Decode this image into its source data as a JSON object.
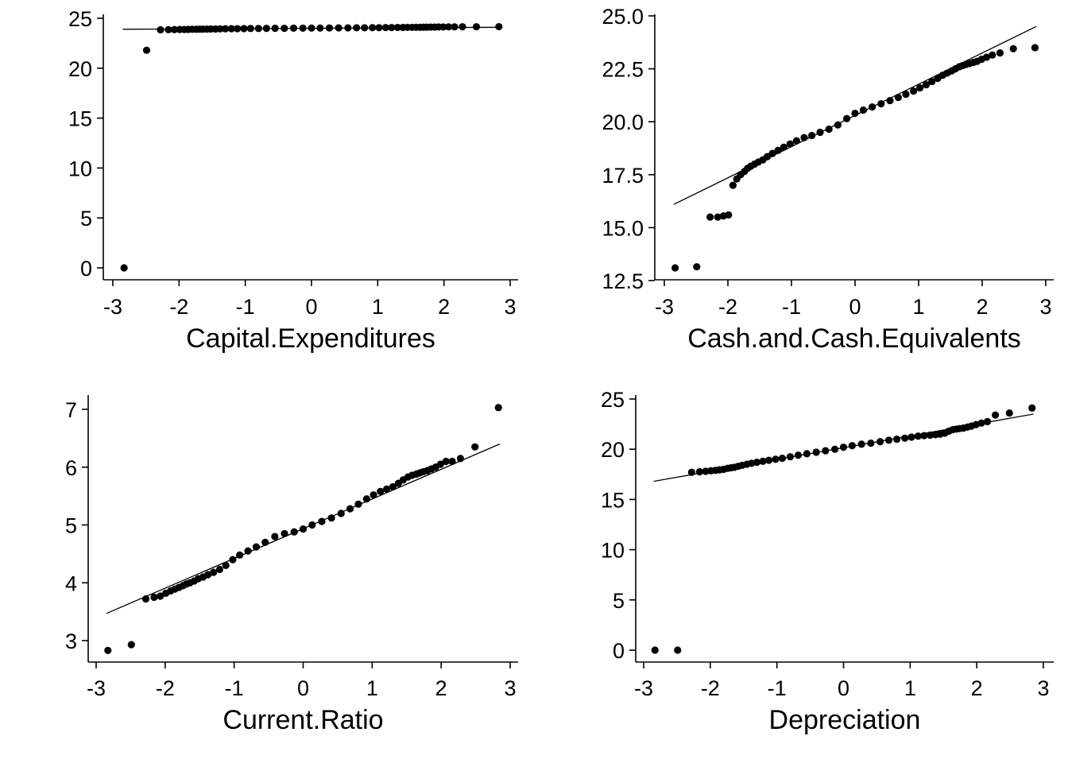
{
  "chart_data": [
    {
      "type": "scatter",
      "subtype": "qq-plot",
      "xlabel": "Capital.Expenditures",
      "ylabel": "",
      "xlim": [
        -3.0,
        3.0
      ],
      "ylim": [
        -1.0,
        25.5
      ],
      "xticks": [
        -3,
        -2,
        -1,
        0,
        1,
        2,
        3
      ],
      "xtick_labels": [
        "-3",
        "-2",
        "-1",
        "0",
        "1",
        "2",
        "3"
      ],
      "yticks": [
        0,
        5,
        10,
        15,
        20,
        25
      ],
      "ytick_labels": [
        "0",
        "5",
        "10",
        "15",
        "20",
        "25"
      ],
      "reference_line": {
        "x": [
          -2.85,
          2.85
        ],
        "y": [
          23.9,
          24.1
        ]
      },
      "points": {
        "x": [
          -2.83,
          -2.49,
          -2.28,
          -2.16,
          -2.07,
          -1.99,
          -1.92,
          -1.86,
          -1.8,
          -1.74,
          -1.69,
          -1.64,
          -1.58,
          -1.52,
          -1.45,
          -1.38,
          -1.3,
          -1.21,
          -1.12,
          -1.02,
          -0.92,
          -0.8,
          -0.68,
          -0.55,
          -0.41,
          -0.27,
          -0.13,
          0.0,
          0.13,
          0.27,
          0.41,
          0.55,
          0.68,
          0.8,
          0.92,
          1.02,
          1.12,
          1.21,
          1.3,
          1.38,
          1.45,
          1.52,
          1.58,
          1.64,
          1.69,
          1.74,
          1.8,
          1.86,
          1.92,
          1.99,
          2.07,
          2.16,
          2.28,
          2.49,
          2.83
        ],
        "y": [
          0.0,
          21.8,
          23.85,
          23.86,
          23.87,
          23.88,
          23.88,
          23.89,
          23.9,
          23.9,
          23.91,
          23.91,
          23.92,
          23.93,
          23.93,
          23.94,
          23.95,
          23.96,
          23.96,
          23.97,
          23.98,
          23.98,
          23.99,
          24.0,
          24.0,
          24.01,
          24.01,
          24.02,
          24.02,
          24.03,
          24.04,
          24.04,
          24.05,
          24.05,
          24.06,
          24.06,
          24.07,
          24.07,
          24.08,
          24.08,
          24.09,
          24.09,
          24.1,
          24.1,
          24.11,
          24.11,
          24.12,
          24.12,
          24.13,
          24.13,
          24.14,
          24.14,
          24.15,
          24.15,
          24.16
        ]
      }
    },
    {
      "type": "scatter",
      "subtype": "qq-plot",
      "xlabel": "Cash.and.Cash.Equivalents",
      "ylabel": "",
      "xlim": [
        -3.0,
        3.0
      ],
      "ylim": [
        12.5,
        25.0
      ],
      "xticks": [
        -3,
        -2,
        -1,
        0,
        1,
        2,
        3
      ],
      "xtick_labels": [
        "-3",
        "-2",
        "-1",
        "0",
        "1",
        "2",
        "3"
      ],
      "yticks": [
        12.5,
        15.0,
        17.5,
        20.0,
        22.5,
        25.0
      ],
      "ytick_labels": [
        "12.5",
        "15.0",
        "17.5",
        "20.0",
        "22.5",
        "25.0"
      ],
      "reference_line": {
        "x": [
          -2.85,
          2.85
        ],
        "y": [
          16.1,
          24.5
        ]
      },
      "points": {
        "x": [
          -2.83,
          -2.49,
          -2.28,
          -2.16,
          -2.07,
          -1.99,
          -1.92,
          -1.86,
          -1.8,
          -1.74,
          -1.69,
          -1.64,
          -1.58,
          -1.52,
          -1.45,
          -1.38,
          -1.3,
          -1.21,
          -1.12,
          -1.02,
          -0.92,
          -0.8,
          -0.68,
          -0.55,
          -0.41,
          -0.27,
          -0.13,
          0.0,
          0.13,
          0.27,
          0.41,
          0.55,
          0.68,
          0.8,
          0.92,
          1.02,
          1.12,
          1.21,
          1.3,
          1.38,
          1.45,
          1.52,
          1.58,
          1.64,
          1.69,
          1.74,
          1.8,
          1.86,
          1.92,
          1.99,
          2.07,
          2.16,
          2.28,
          2.49,
          2.83
        ],
        "y": [
          13.1,
          13.15,
          15.5,
          15.5,
          15.55,
          15.6,
          17.0,
          17.3,
          17.5,
          17.65,
          17.8,
          17.9,
          18.0,
          18.1,
          18.2,
          18.35,
          18.5,
          18.65,
          18.8,
          18.95,
          19.1,
          19.25,
          19.35,
          19.5,
          19.65,
          19.85,
          20.15,
          20.4,
          20.55,
          20.7,
          20.85,
          21.0,
          21.15,
          21.3,
          21.45,
          21.6,
          21.75,
          21.9,
          22.05,
          22.2,
          22.3,
          22.4,
          22.5,
          22.6,
          22.65,
          22.7,
          22.75,
          22.8,
          22.85,
          22.95,
          23.05,
          23.15,
          23.25,
          23.45,
          23.5
        ]
      }
    },
    {
      "type": "scatter",
      "subtype": "qq-plot",
      "xlabel": "Current.Ratio",
      "ylabel": "",
      "xlim": [
        -3.0,
        3.0
      ],
      "ylim": [
        2.6,
        7.25
      ],
      "xticks": [
        -3,
        -2,
        -1,
        0,
        1,
        2,
        3
      ],
      "xtick_labels": [
        "-3",
        "-2",
        "-1",
        "0",
        "1",
        "2",
        "3"
      ],
      "yticks": [
        3,
        4,
        5,
        6,
        7
      ],
      "ytick_labels": [
        "3",
        "4",
        "5",
        "6",
        "7"
      ],
      "reference_line": {
        "x": [
          -2.85,
          2.85
        ],
        "y": [
          3.47,
          6.4
        ]
      },
      "points": {
        "x": [
          -2.83,
          -2.49,
          -2.28,
          -2.16,
          -2.07,
          -1.99,
          -1.92,
          -1.86,
          -1.8,
          -1.74,
          -1.69,
          -1.64,
          -1.58,
          -1.52,
          -1.45,
          -1.38,
          -1.3,
          -1.21,
          -1.12,
          -1.02,
          -0.92,
          -0.8,
          -0.68,
          -0.55,
          -0.41,
          -0.27,
          -0.13,
          0.0,
          0.13,
          0.27,
          0.41,
          0.55,
          0.68,
          0.8,
          0.92,
          1.02,
          1.12,
          1.21,
          1.3,
          1.38,
          1.45,
          1.52,
          1.58,
          1.64,
          1.69,
          1.74,
          1.8,
          1.86,
          1.92,
          1.99,
          2.07,
          2.16,
          2.28,
          2.49,
          2.83
        ],
        "y": [
          2.83,
          2.93,
          3.72,
          3.75,
          3.77,
          3.82,
          3.86,
          3.89,
          3.92,
          3.95,
          3.98,
          4.0,
          4.03,
          4.07,
          4.1,
          4.14,
          4.18,
          4.23,
          4.3,
          4.4,
          4.48,
          4.55,
          4.62,
          4.7,
          4.8,
          4.85,
          4.88,
          4.93,
          5.0,
          5.06,
          5.12,
          5.2,
          5.28,
          5.36,
          5.45,
          5.52,
          5.58,
          5.62,
          5.66,
          5.72,
          5.78,
          5.83,
          5.86,
          5.88,
          5.9,
          5.92,
          5.94,
          5.97,
          6.0,
          6.05,
          6.1,
          6.1,
          6.15,
          6.35,
          7.03
        ]
      }
    },
    {
      "type": "scatter",
      "subtype": "qq-plot",
      "xlabel": "Depreciation",
      "ylabel": "",
      "xlim": [
        -3.0,
        3.0
      ],
      "ylim": [
        -1.0,
        25.5
      ],
      "xticks": [
        -3,
        -2,
        -1,
        0,
        1,
        2,
        3
      ],
      "xtick_labels": [
        "-3",
        "-2",
        "-1",
        "0",
        "1",
        "2",
        "3"
      ],
      "yticks": [
        0,
        5,
        10,
        15,
        20,
        25
      ],
      "ytick_labels": [
        "0",
        "5",
        "10",
        "15",
        "20",
        "25"
      ],
      "reference_line": {
        "x": [
          -2.85,
          2.85
        ],
        "y": [
          16.8,
          23.5
        ]
      },
      "points": {
        "x": [
          -2.83,
          -2.49,
          -2.28,
          -2.16,
          -2.07,
          -1.99,
          -1.92,
          -1.86,
          -1.8,
          -1.74,
          -1.69,
          -1.64,
          -1.58,
          -1.52,
          -1.45,
          -1.38,
          -1.3,
          -1.21,
          -1.12,
          -1.02,
          -0.92,
          -0.8,
          -0.68,
          -0.55,
          -0.41,
          -0.27,
          -0.13,
          0.0,
          0.13,
          0.27,
          0.41,
          0.55,
          0.68,
          0.8,
          0.92,
          1.02,
          1.12,
          1.21,
          1.3,
          1.38,
          1.45,
          1.52,
          1.58,
          1.64,
          1.69,
          1.74,
          1.8,
          1.86,
          1.92,
          1.99,
          2.07,
          2.16,
          2.28,
          2.49,
          2.83
        ],
        "y": [
          0.0,
          0.0,
          17.7,
          17.75,
          17.8,
          17.85,
          17.9,
          17.95,
          18.0,
          18.1,
          18.15,
          18.2,
          18.3,
          18.4,
          18.5,
          18.6,
          18.7,
          18.8,
          18.9,
          19.0,
          19.1,
          19.25,
          19.4,
          19.55,
          19.7,
          19.85,
          20.0,
          20.2,
          20.35,
          20.5,
          20.6,
          20.75,
          20.9,
          21.0,
          21.1,
          21.2,
          21.3,
          21.35,
          21.4,
          21.45,
          21.5,
          21.6,
          21.8,
          21.95,
          22.0,
          22.05,
          22.1,
          22.2,
          22.3,
          22.45,
          22.6,
          22.75,
          23.4,
          23.6,
          24.1
        ]
      }
    }
  ]
}
